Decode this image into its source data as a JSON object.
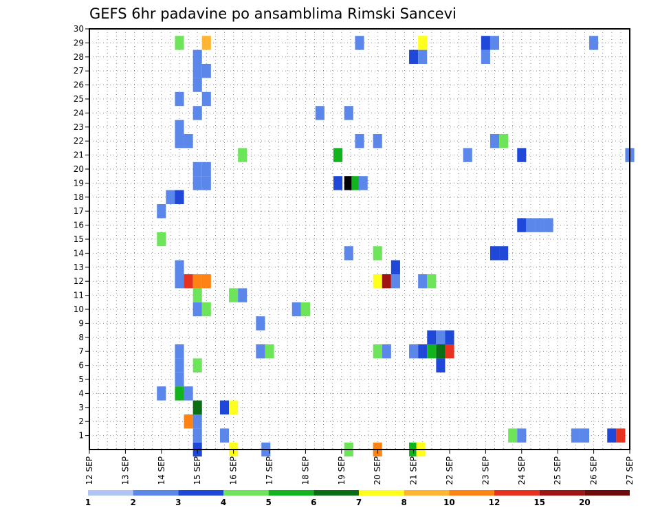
{
  "chart_data": {
    "type": "heatmap",
    "title": "GEFS 6hr padavine po ansamblima Rimski Sancevi",
    "xlabel": "",
    "ylabel": "",
    "x_ticks": [
      "12 SEP",
      "13 SEP",
      "14 SEP",
      "15 SEP",
      "16 SEP",
      "17 SEP",
      "18 SEP",
      "19 SEP",
      "20 SEP",
      "21 SEP",
      "22 SEP",
      "23 SEP",
      "24 SEP",
      "25 SEP",
      "26 SEP",
      "27 SEP"
    ],
    "x_range_days": [
      12,
      27
    ],
    "y_ticks": [
      "1",
      "2",
      "3",
      "4",
      "5",
      "6",
      "7",
      "8",
      "9",
      "10",
      "11",
      "12",
      "13",
      "14",
      "15",
      "16",
      "17",
      "18",
      "19",
      "20",
      "21",
      "22",
      "23",
      "24",
      "25",
      "26",
      "27",
      "28",
      "29",
      "30"
    ],
    "y_range": [
      0,
      30
    ],
    "grid": true,
    "legend_placement": "bottom",
    "legend": {
      "labels": [
        "1",
        "2",
        "3",
        "4",
        "5",
        "6",
        "7",
        "8",
        "10",
        "12",
        "15",
        "20"
      ],
      "colors": [
        "#b0c4f4",
        "#5b86ea",
        "#1f48d8",
        "#6ee45a",
        "#12b41e",
        "#0a6e14",
        "#ffff1e",
        "#ffb432",
        "#ff8214",
        "#e6321e",
        "#a01414",
        "#6e0a0a"
      ]
    },
    "cells": [
      [
        15.0,
        0,
        2
      ],
      [
        16.0,
        0,
        6
      ],
      [
        16.9,
        0,
        1
      ],
      [
        19.2,
        0,
        3
      ],
      [
        20.0,
        0,
        8
      ],
      [
        21.0,
        0,
        4
      ],
      [
        21.2,
        0,
        6
      ],
      [
        15.0,
        1,
        1
      ],
      [
        15.75,
        1,
        1
      ],
      [
        23.75,
        1,
        3
      ],
      [
        24.0,
        1,
        1
      ],
      [
        25.5,
        1,
        1
      ],
      [
        25.75,
        1,
        1
      ],
      [
        26.5,
        1,
        2
      ],
      [
        26.75,
        1,
        9
      ],
      [
        14.75,
        2,
        8
      ],
      [
        15.0,
        2,
        1
      ],
      [
        15.0,
        3,
        5
      ],
      [
        15.75,
        3,
        2
      ],
      [
        16.0,
        3,
        6
      ],
      [
        14.0,
        4,
        1
      ],
      [
        14.5,
        4,
        4
      ],
      [
        14.75,
        4,
        1
      ],
      [
        14.5,
        5,
        1
      ],
      [
        14.5,
        6,
        1
      ],
      [
        15.0,
        6,
        3
      ],
      [
        21.75,
        6,
        2
      ],
      [
        14.5,
        7,
        1
      ],
      [
        16.75,
        7,
        1
      ],
      [
        17.0,
        7,
        3
      ],
      [
        20.0,
        7,
        3
      ],
      [
        20.25,
        7,
        1
      ],
      [
        21.0,
        7,
        1
      ],
      [
        21.25,
        7,
        2
      ],
      [
        21.5,
        7,
        4
      ],
      [
        21.75,
        7,
        5
      ],
      [
        22.0,
        7,
        9
      ],
      [
        21.5,
        8,
        2
      ],
      [
        21.75,
        8,
        1
      ],
      [
        22.0,
        8,
        2
      ],
      [
        16.75,
        9,
        1
      ],
      [
        15.0,
        10,
        1
      ],
      [
        15.25,
        10,
        3
      ],
      [
        17.75,
        10,
        1
      ],
      [
        18.0,
        10,
        3
      ],
      [
        15.0,
        11,
        3
      ],
      [
        16.0,
        11,
        3
      ],
      [
        16.25,
        11,
        1
      ],
      [
        14.5,
        12,
        1
      ],
      [
        14.75,
        12,
        9
      ],
      [
        15.0,
        12,
        8
      ],
      [
        15.25,
        12,
        8
      ],
      [
        20.0,
        12,
        6
      ],
      [
        20.25,
        12,
        10
      ],
      [
        20.5,
        12,
        1
      ],
      [
        21.25,
        12,
        1
      ],
      [
        21.5,
        12,
        3
      ],
      [
        14.5,
        13,
        1
      ],
      [
        20.5,
        13,
        2
      ],
      [
        19.2,
        14,
        1
      ],
      [
        20.0,
        14,
        3
      ],
      [
        23.25,
        14,
        2
      ],
      [
        23.5,
        14,
        2
      ],
      [
        14.0,
        15,
        3
      ],
      [
        24.0,
        16,
        2
      ],
      [
        24.25,
        16,
        1
      ],
      [
        24.5,
        16,
        1
      ],
      [
        24.75,
        16,
        1
      ],
      [
        14.0,
        17,
        1
      ],
      [
        14.25,
        18,
        1
      ],
      [
        14.5,
        18,
        2
      ],
      [
        15.0,
        19,
        1
      ],
      [
        15.25,
        19,
        1
      ],
      [
        18.9,
        19,
        2
      ],
      [
        19.2,
        19,
        12
      ],
      [
        19.4,
        19,
        4
      ],
      [
        19.6,
        19,
        1
      ],
      [
        15.0,
        20,
        1
      ],
      [
        15.25,
        20,
        1
      ],
      [
        16.25,
        21,
        3
      ],
      [
        18.9,
        21,
        4
      ],
      [
        22.5,
        21,
        1
      ],
      [
        24.0,
        21,
        2
      ],
      [
        27.0,
        21,
        1
      ],
      [
        14.5,
        22,
        1
      ],
      [
        14.75,
        22,
        1
      ],
      [
        19.5,
        22,
        1
      ],
      [
        20.0,
        22,
        1
      ],
      [
        23.25,
        22,
        1
      ],
      [
        23.5,
        22,
        3
      ],
      [
        14.5,
        23,
        1
      ],
      [
        15.0,
        24,
        1
      ],
      [
        18.4,
        24,
        1
      ],
      [
        19.2,
        24,
        1
      ],
      [
        14.5,
        25,
        1
      ],
      [
        15.25,
        25,
        1
      ],
      [
        15.0,
        26,
        1
      ],
      [
        15.0,
        27,
        1
      ],
      [
        15.25,
        27,
        1
      ],
      [
        15.0,
        28,
        1
      ],
      [
        21.0,
        28,
        2
      ],
      [
        21.25,
        28,
        1
      ],
      [
        23.0,
        28,
        1
      ],
      [
        14.5,
        29,
        3
      ],
      [
        15.25,
        29,
        7
      ],
      [
        19.5,
        29,
        1
      ],
      [
        21.25,
        29,
        6
      ],
      [
        23.0,
        29,
        2
      ],
      [
        23.25,
        29,
        1
      ],
      [
        26.0,
        29,
        1
      ]
    ]
  }
}
